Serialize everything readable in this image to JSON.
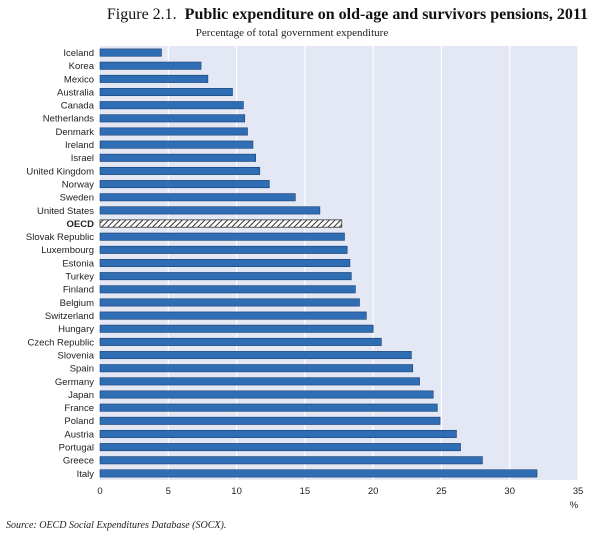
{
  "header": {
    "figure_label": "Figure 2.1.",
    "title": "Public expenditure on old-age and survivors pensions, 2011",
    "subtitle": "Percentage of total government expenditure"
  },
  "footer": {
    "source": "Source:  OECD Social Expenditures Database (SOCX)."
  },
  "chart_data": {
    "type": "bar",
    "orientation": "horizontal",
    "title": "Public expenditure on old-age and survivors pensions, 2011",
    "subtitle": "Percentage of total government expenditure",
    "xlabel": "%",
    "ylabel": "",
    "xlim": [
      0,
      35
    ],
    "xticks": [
      0,
      5,
      10,
      15,
      20,
      25,
      30,
      35
    ],
    "grid": true,
    "highlight": "OECD",
    "colors": {
      "bar": "#2f6db5",
      "bar_edge": "#1a3f6e",
      "plot_bg": "#e4e8f5",
      "grid": "#ffffff",
      "highlight": "#333333"
    },
    "categories": [
      "Iceland",
      "Korea",
      "Mexico",
      "Australia",
      "Canada",
      "Netherlands",
      "Denmark",
      "Ireland",
      "Israel",
      "United Kingdom",
      "Norway",
      "Sweden",
      "United States",
      "OECD",
      "Slovak Republic",
      "Luxembourg",
      "Estonia",
      "Turkey",
      "Finland",
      "Belgium",
      "Switzerland",
      "Hungary",
      "Czech Republic",
      "Slovenia",
      "Spain",
      "Germany",
      "Japan",
      "France",
      "Poland",
      "Austria",
      "Portugal",
      "Greece",
      "Italy"
    ],
    "values": [
      4.5,
      7.4,
      7.9,
      9.7,
      10.5,
      10.6,
      10.8,
      11.2,
      11.4,
      11.7,
      12.4,
      14.3,
      16.1,
      17.7,
      17.9,
      18.1,
      18.3,
      18.4,
      18.7,
      19.0,
      19.5,
      20.0,
      20.6,
      22.8,
      22.9,
      23.4,
      24.4,
      24.7,
      24.9,
      26.1,
      26.4,
      28.0,
      32.0
    ]
  }
}
